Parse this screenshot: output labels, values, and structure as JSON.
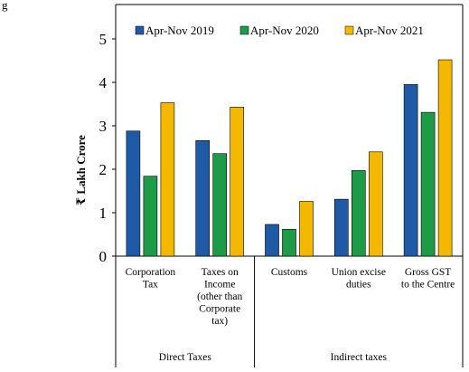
{
  "chart_data": {
    "type": "bar",
    "title": "g",
    "ylabel": "₹ Lakh Crore",
    "ylim": [
      0,
      5
    ],
    "yticks": [
      "0",
      "1",
      "2",
      "3",
      "4",
      "5"
    ],
    "grid": false,
    "legend_position": "top",
    "categories": [
      [
        "Corporation",
        "Tax"
      ],
      [
        "Taxes on",
        "Income",
        "(other than",
        "Corporate",
        "tax)"
      ],
      [
        "Customs"
      ],
      [
        "Union excise",
        "duties"
      ],
      [
        "Gross GST",
        "to the Centre"
      ]
    ],
    "groups": [
      {
        "label": "Direct Taxes",
        "categories": [
          0,
          1
        ]
      },
      {
        "label": "Indirect taxes",
        "categories": [
          2,
          3,
          4
        ]
      }
    ],
    "series": [
      {
        "name": "Apr-Nov 2019",
        "color": "#1f5aa6",
        "values": [
          2.88,
          2.66,
          0.73,
          1.31,
          3.95
        ]
      },
      {
        "name": "Apr-Nov 2020",
        "color": "#1e9b47",
        "values": [
          1.84,
          2.36,
          0.62,
          1.97,
          3.31
        ]
      },
      {
        "name": "Apr-Nov 2021",
        "color": "#f5b800",
        "values": [
          3.53,
          3.43,
          1.26,
          2.4,
          4.52
        ]
      }
    ]
  }
}
